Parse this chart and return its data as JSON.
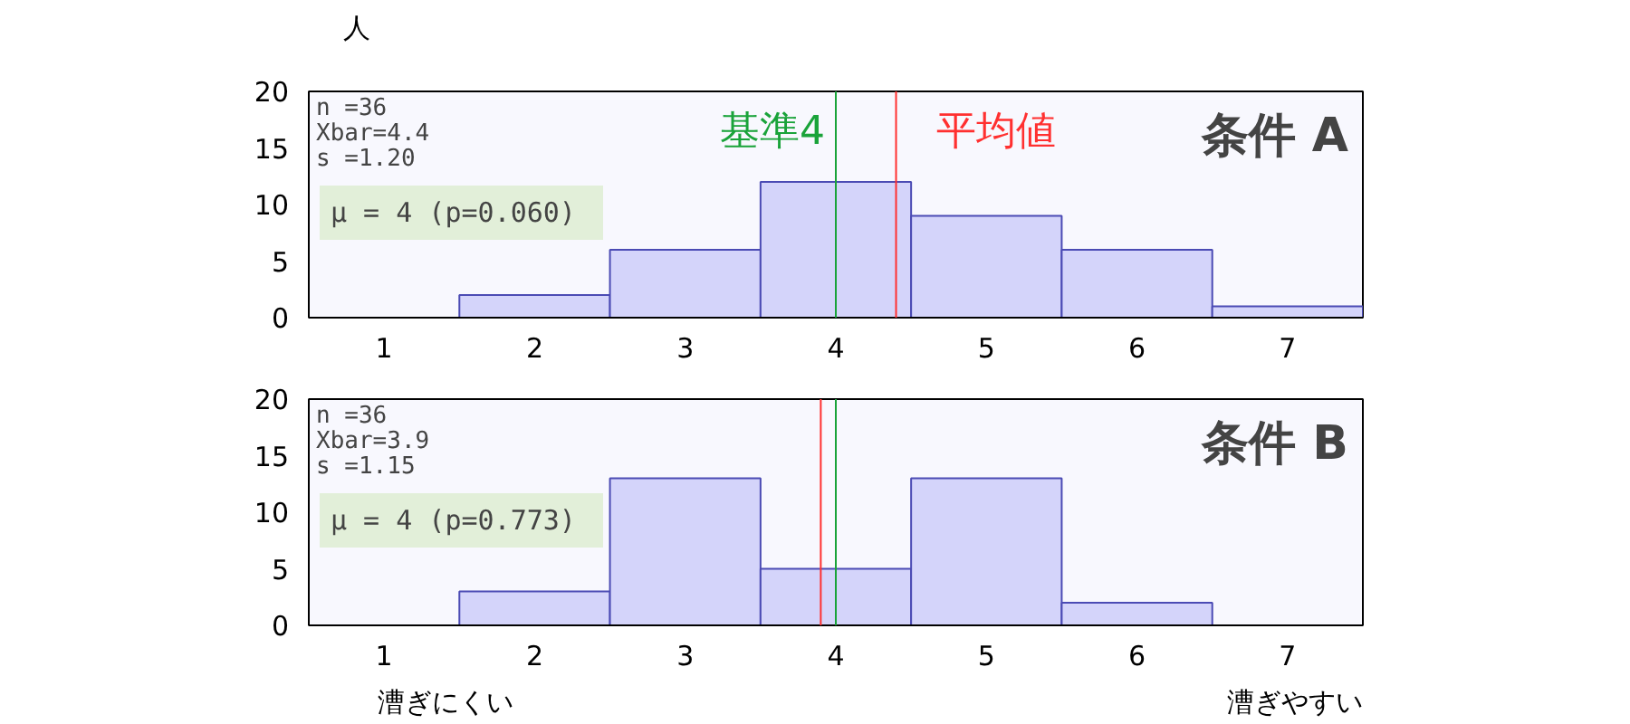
{
  "chart_data": [
    {
      "type": "histogram",
      "title": "条件 A",
      "ylabel": "人",
      "bins": [
        0.5,
        1.5,
        2.5,
        3.5,
        4.5,
        5.5,
        6.5,
        7.5
      ],
      "values": [
        0,
        2,
        6,
        12,
        9,
        6,
        1
      ],
      "color": "#d4d4fa",
      "xlim": [
        0.5,
        7.5
      ],
      "xticks": [
        1,
        2,
        3,
        4,
        5,
        6,
        7
      ],
      "ylim": [
        0,
        20
      ],
      "yticks": [
        0,
        5,
        10,
        15,
        20
      ],
      "ref_lines": [
        {
          "axis": "x",
          "value": 4,
          "label": "基準4",
          "color": "#1aa33a"
        },
        {
          "axis": "x",
          "value": 4.4,
          "label": "平均値",
          "color": "#ff3030"
        }
      ],
      "annotations": [
        "n   =36",
        "Xbar=4.4",
        "s   =1.20",
        "μ  = 4 (p=0.060)"
      ]
    },
    {
      "type": "histogram",
      "title": "条件 B",
      "bins": [
        0.5,
        1.5,
        2.5,
        3.5,
        4.5,
        5.5,
        6.5,
        7.5
      ],
      "values": [
        0,
        3,
        13,
        5,
        13,
        2,
        0
      ],
      "color": "#d4d4fa",
      "xlim": [
        0.5,
        7.5
      ],
      "xticks": [
        1,
        2,
        3,
        4,
        5,
        6,
        7
      ],
      "ylim": [
        0,
        20
      ],
      "yticks": [
        0,
        5,
        10,
        15,
        20
      ],
      "ref_lines": [
        {
          "axis": "x",
          "value": 4,
          "color": "#1aa33a"
        },
        {
          "axis": "x",
          "value": 3.9,
          "color": "#ff3030"
        }
      ],
      "annotations": [
        "n   =36",
        "Xbar=3.9",
        "s   =1.15",
        "μ  = 4 (p=0.773)",
        "漕ぎにくい",
        "漕ぎやすい"
      ]
    }
  ]
}
